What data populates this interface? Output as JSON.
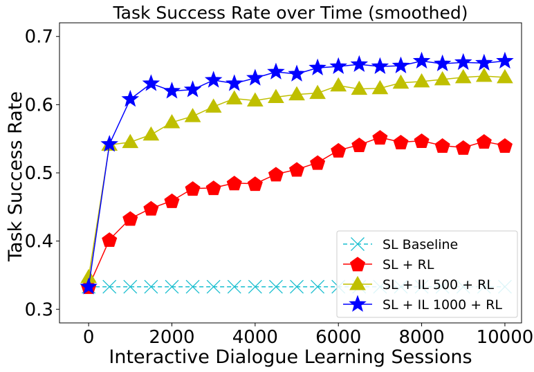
{
  "chart_data": {
    "type": "line",
    "title": "Task Success Rate over Time (smoothed)",
    "xlabel": "Interactive Dialogue Learning Sessions",
    "ylabel": "Task Success Rate",
    "xlim": [
      -700,
      10400
    ],
    "ylim": [
      0.28,
      0.72
    ],
    "xticks": [
      0,
      2000,
      4000,
      6000,
      8000,
      10000
    ],
    "xtick_labels": [
      "0",
      "2000",
      "4000",
      "6000",
      "8000",
      "10000"
    ],
    "yticks": [
      0.3,
      0.4,
      0.5,
      0.6,
      0.7
    ],
    "ytick_labels": [
      "0.3",
      "0.4",
      "0.5",
      "0.6",
      "0.7"
    ],
    "grid": false,
    "legend_position": "bottom-right",
    "x": [
      0,
      500,
      1000,
      1500,
      2000,
      2500,
      3000,
      3500,
      4000,
      4500,
      5000,
      5500,
      6000,
      6500,
      7000,
      7500,
      8000,
      8500,
      9000,
      9500,
      10000
    ],
    "series": [
      {
        "name": "SL Baseline",
        "color": "#17becf",
        "line": "dashed",
        "marker": "x",
        "values": [
          0.333,
          0.333,
          0.333,
          0.333,
          0.333,
          0.333,
          0.333,
          0.333,
          0.333,
          0.333,
          0.333,
          0.333,
          0.333,
          0.333,
          0.333,
          0.333,
          0.333,
          0.333,
          0.333,
          0.333,
          0.333
        ]
      },
      {
        "name": "SL + RL",
        "color": "#ff0000",
        "line": "solid",
        "marker": "pentagon",
        "values": [
          0.333,
          0.402,
          0.433,
          0.448,
          0.459,
          0.477,
          0.478,
          0.485,
          0.484,
          0.498,
          0.505,
          0.515,
          0.533,
          0.541,
          0.552,
          0.545,
          0.547,
          0.54,
          0.537,
          0.546,
          0.54
        ]
      },
      {
        "name": "SL + IL 500 + RL",
        "color": "#bfbf00",
        "line": "solid",
        "marker": "triangle",
        "values": [
          0.347,
          0.541,
          0.545,
          0.556,
          0.574,
          0.583,
          0.597,
          0.609,
          0.606,
          0.611,
          0.615,
          0.617,
          0.628,
          0.623,
          0.624,
          0.632,
          0.634,
          0.637,
          0.64,
          0.642,
          0.64
        ]
      },
      {
        "name": "SL + IL 1000 + RL",
        "color": "#0000ff",
        "line": "solid",
        "marker": "star",
        "values": [
          0.333,
          0.542,
          0.608,
          0.631,
          0.62,
          0.622,
          0.636,
          0.631,
          0.639,
          0.648,
          0.645,
          0.654,
          0.656,
          0.659,
          0.656,
          0.657,
          0.664,
          0.66,
          0.662,
          0.661,
          0.664
        ]
      }
    ]
  }
}
